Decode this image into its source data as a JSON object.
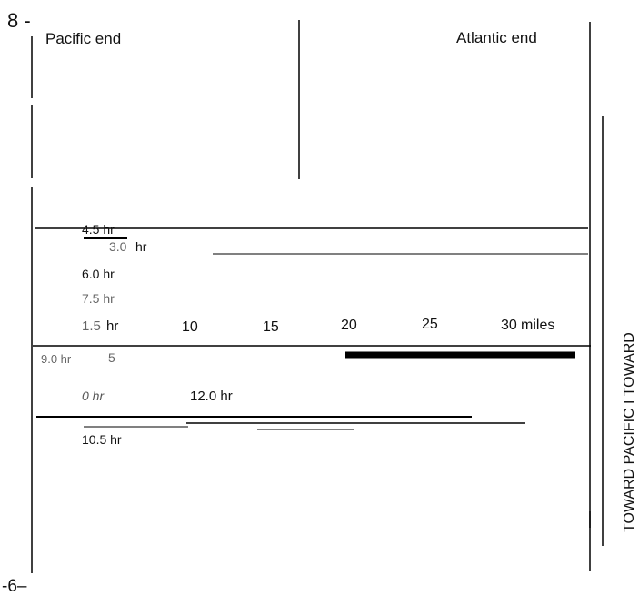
{
  "y_axis": {
    "top_label": "8 -",
    "bottom_label": "-6–"
  },
  "ends": {
    "left": "Pacific end",
    "right": "Atlantic end"
  },
  "side_label": "TOWARD PACIFIC I TOWARD",
  "hour_labels": {
    "h4_5": "4.5 hr",
    "h3_0": "3.0",
    "h3_0_unit": "hr",
    "h6_0": "6.0 hr",
    "h7_5": "7.5 hr",
    "h1_5": "1.5",
    "h1_5_unit": "hr",
    "h9_0": "9.0 hr",
    "h0": "0 hr",
    "h12_0": "12.0 hr",
    "h10_5": "10.5 hr"
  },
  "mile_scale": {
    "ticks": [
      "5",
      "10",
      "15",
      "20",
      "25",
      "30"
    ],
    "unit": "miles"
  }
}
